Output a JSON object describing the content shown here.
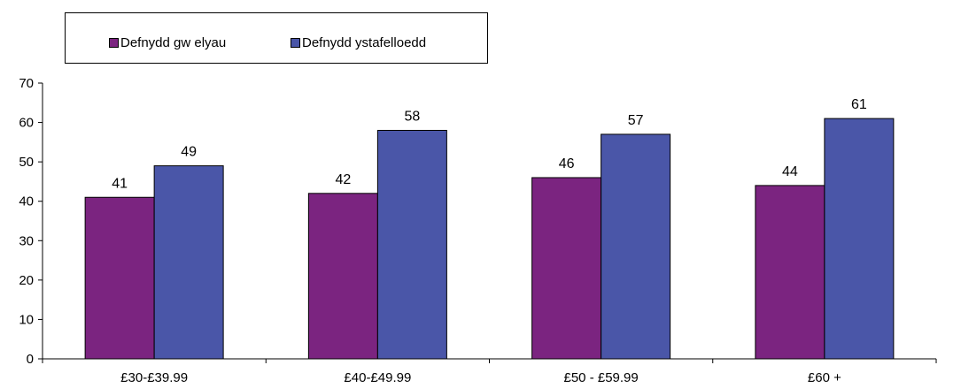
{
  "chart_data": {
    "type": "bar",
    "categories": [
      "£30-£39.99",
      "£40-£49.99",
      "£50 - £59.99",
      "£60 +"
    ],
    "series": [
      {
        "name": "Defnydd gw elyau",
        "values": [
          41,
          42,
          46,
          44
        ],
        "color": "#7b2480"
      },
      {
        "name": "Defnydd ystafelloedd",
        "values": [
          49,
          58,
          57,
          61
        ],
        "color": "#4a56a8"
      }
    ],
    "ylim": [
      0,
      70
    ],
    "yticks": [
      0,
      10,
      20,
      30,
      40,
      50,
      60,
      70
    ],
    "legend_position": "top-left",
    "grid": false,
    "data_labels": true
  }
}
